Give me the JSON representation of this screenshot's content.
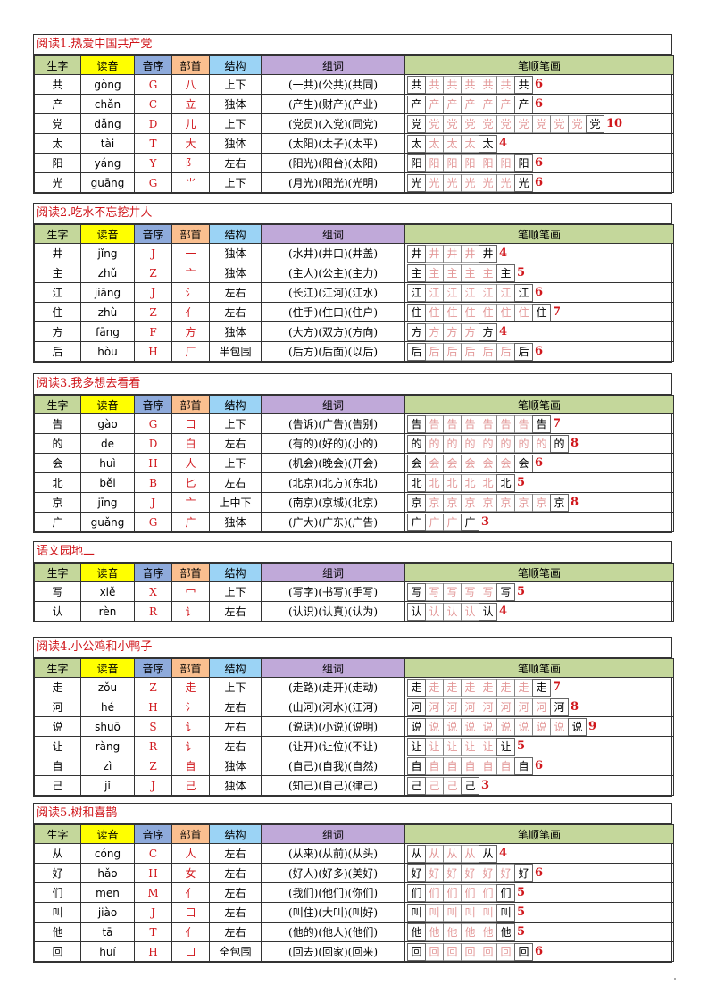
{
  "headers": [
    "生字",
    "读音",
    "音序",
    "部首",
    "结构",
    "组词",
    "笔顺笔画"
  ],
  "header_colors": [
    "#c4d79b",
    "#ffff00",
    "#8eaadb",
    "#fabf8f",
    "#9bd3f5",
    "#c0a9d9",
    "#c4d79b"
  ],
  "accent_color": "#d0161b",
  "sections": [
    {
      "title": "阅读1.热爱中国共产党",
      "rows": [
        {
          "char": "共",
          "pinyin": "gòng",
          "letter": "G",
          "radical": "八",
          "structure": "上下",
          "words": "(一共)(公共)(共同)",
          "strokes": 6
        },
        {
          "char": "产",
          "pinyin": "chǎn",
          "letter": "C",
          "radical": "立",
          "structure": "独体",
          "words": "(产生)(财产)(产业)",
          "strokes": 6
        },
        {
          "char": "党",
          "pinyin": "dǎng",
          "letter": "D",
          "radical": "儿",
          "structure": "上下",
          "words": "(党员)(入党)(同党)",
          "strokes": 10
        },
        {
          "char": "太",
          "pinyin": "tài",
          "letter": "T",
          "radical": "大",
          "structure": "独体",
          "words": "(太阳)(太子)(太平)",
          "strokes": 4
        },
        {
          "char": "阳",
          "pinyin": "yáng",
          "letter": "Y",
          "radical": "阝",
          "structure": "左右",
          "words": "(阳光)(阳台)(太阳)",
          "strokes": 6
        },
        {
          "char": "光",
          "pinyin": "guāng",
          "letter": "G",
          "radical": "⺌",
          "structure": "上下",
          "words": "(月光)(阳光)(光明)",
          "strokes": 6
        }
      ]
    },
    {
      "title": "阅读2.吃水不忘挖井人",
      "rows": [
        {
          "char": "井",
          "pinyin": "jǐng",
          "letter": "J",
          "radical": "一",
          "structure": "独体",
          "words": "(水井)(井口)(井盖)",
          "strokes": 4
        },
        {
          "char": "主",
          "pinyin": "zhǔ",
          "letter": "Z",
          "radical": "亠",
          "structure": "独体",
          "words": "(主人)(公主)(主力)",
          "strokes": 5
        },
        {
          "char": "江",
          "pinyin": "jiāng",
          "letter": "J",
          "radical": "氵",
          "structure": "左右",
          "words": "(长江)(江河)(江水)",
          "strokes": 6
        },
        {
          "char": "住",
          "pinyin": "zhù",
          "letter": "Z",
          "radical": "亻",
          "structure": "左右",
          "words": "(住手)(住口)(住户)",
          "strokes": 7
        },
        {
          "char": "方",
          "pinyin": "fāng",
          "letter": "F",
          "radical": "方",
          "structure": "独体",
          "words": "(大方)(双方)(方向)",
          "strokes": 4
        },
        {
          "char": "后",
          "pinyin": "hòu",
          "letter": "H",
          "radical": "厂",
          "structure": "半包围",
          "words": "(后方)(后面)(以后)",
          "strokes": 6
        }
      ]
    },
    {
      "title": "阅读3.我多想去看看",
      "rows": [
        {
          "char": "告",
          "pinyin": "gào",
          "letter": "G",
          "radical": "口",
          "structure": "上下",
          "words": "(告诉)(广告)(告别)",
          "strokes": 7
        },
        {
          "char": "的",
          "pinyin": "de",
          "letter": "D",
          "radical": "白",
          "structure": "左右",
          "words": "(有的)(好的)(小的)",
          "strokes": 8
        },
        {
          "char": "会",
          "pinyin": "huì",
          "letter": "H",
          "radical": "人",
          "structure": "上下",
          "words": "(机会)(晚会)(开会)",
          "strokes": 6
        },
        {
          "char": "北",
          "pinyin": "běi",
          "letter": "B",
          "radical": "匕",
          "structure": "左右",
          "words": "(北京)(北方)(东北)",
          "strokes": 5
        },
        {
          "char": "京",
          "pinyin": "jīng",
          "letter": "J",
          "radical": "亠",
          "structure": "上中下",
          "words": "(南京)(京城)(北京)",
          "strokes": 8
        },
        {
          "char": "广",
          "pinyin": "guǎng",
          "letter": "G",
          "radical": "广",
          "structure": "独体",
          "words": "(广大)(广东)(广告)",
          "strokes": 3
        }
      ]
    },
    {
      "title": "语文园地二",
      "rows": [
        {
          "char": "写",
          "pinyin": "xiě",
          "letter": "X",
          "radical": "冖",
          "structure": "上下",
          "words": "(写字)(书写)(手写)",
          "strokes": 5
        },
        {
          "char": "认",
          "pinyin": "rèn",
          "letter": "R",
          "radical": "讠",
          "structure": "左右",
          "words": "(认识)(认真)(认为)",
          "strokes": 4
        }
      ]
    },
    {
      "title": "阅读4.小公鸡和小鸭子",
      "rows": [
        {
          "char": "走",
          "pinyin": "zǒu",
          "letter": "Z",
          "radical": "走",
          "structure": "上下",
          "words": "(走路)(走开)(走动)",
          "strokes": 7
        },
        {
          "char": "河",
          "pinyin": "hé",
          "letter": "H",
          "radical": "氵",
          "structure": "左右",
          "words": "(山河)(河水)(江河)",
          "strokes": 8
        },
        {
          "char": "说",
          "pinyin": "shuō",
          "letter": "S",
          "radical": "讠",
          "structure": "左右",
          "words": "(说话)(小说)(说明)",
          "strokes": 9
        },
        {
          "char": "让",
          "pinyin": "ràng",
          "letter": "R",
          "radical": "讠",
          "structure": "左右",
          "words": "(让开)(让位)(不让)",
          "strokes": 5
        },
        {
          "char": "自",
          "pinyin": "zì",
          "letter": "Z",
          "radical": "自",
          "structure": "独体",
          "words": "(自己)(自我)(自然)",
          "strokes": 6
        },
        {
          "char": "己",
          "pinyin": "jǐ",
          "letter": "J",
          "radical": "己",
          "structure": "独体",
          "words": "(知己)(自己)(律己)",
          "strokes": 3
        }
      ]
    },
    {
      "title": "阅读5.树和喜鹊",
      "rows": [
        {
          "char": "从",
          "pinyin": "cóng",
          "letter": "C",
          "radical": "人",
          "structure": "左右",
          "words": "(从来)(从前)(从头)",
          "strokes": 4
        },
        {
          "char": "好",
          "pinyin": "hǎo",
          "letter": "H",
          "radical": "女",
          "structure": "左右",
          "words": "(好人)(好多)(美好)",
          "strokes": 6
        },
        {
          "char": "们",
          "pinyin": "men",
          "letter": "M",
          "radical": "亻",
          "structure": "左右",
          "words": "(我们)(他们)(你们)",
          "strokes": 5
        },
        {
          "char": "叫",
          "pinyin": "jiào",
          "letter": "J",
          "radical": "口",
          "structure": "左右",
          "words": "(叫住)(大叫)(叫好)",
          "strokes": 5
        },
        {
          "char": "他",
          "pinyin": "tā",
          "letter": "T",
          "radical": "亻",
          "structure": "左右",
          "words": "(他的)(他人)(他们)",
          "strokes": 5
        },
        {
          "char": "回",
          "pinyin": "huí",
          "letter": "H",
          "radical": "口",
          "structure": "全包围",
          "words": "(回去)(回家)(回来)",
          "strokes": 6
        }
      ]
    }
  ]
}
